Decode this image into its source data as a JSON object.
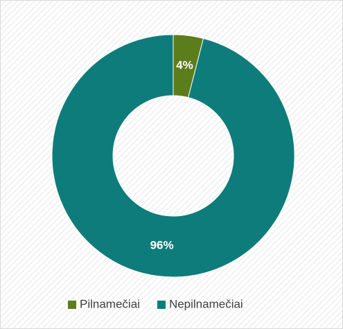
{
  "chart_data": {
    "type": "pie",
    "donut": true,
    "categories": [
      "Pilnamečiai",
      "Nepilnamečiai"
    ],
    "values": [
      4,
      96
    ],
    "value_labels": [
      "4%",
      "96%"
    ],
    "colors": [
      "#5b7d1b",
      "#0e7c7b"
    ],
    "legend": "bottom"
  }
}
